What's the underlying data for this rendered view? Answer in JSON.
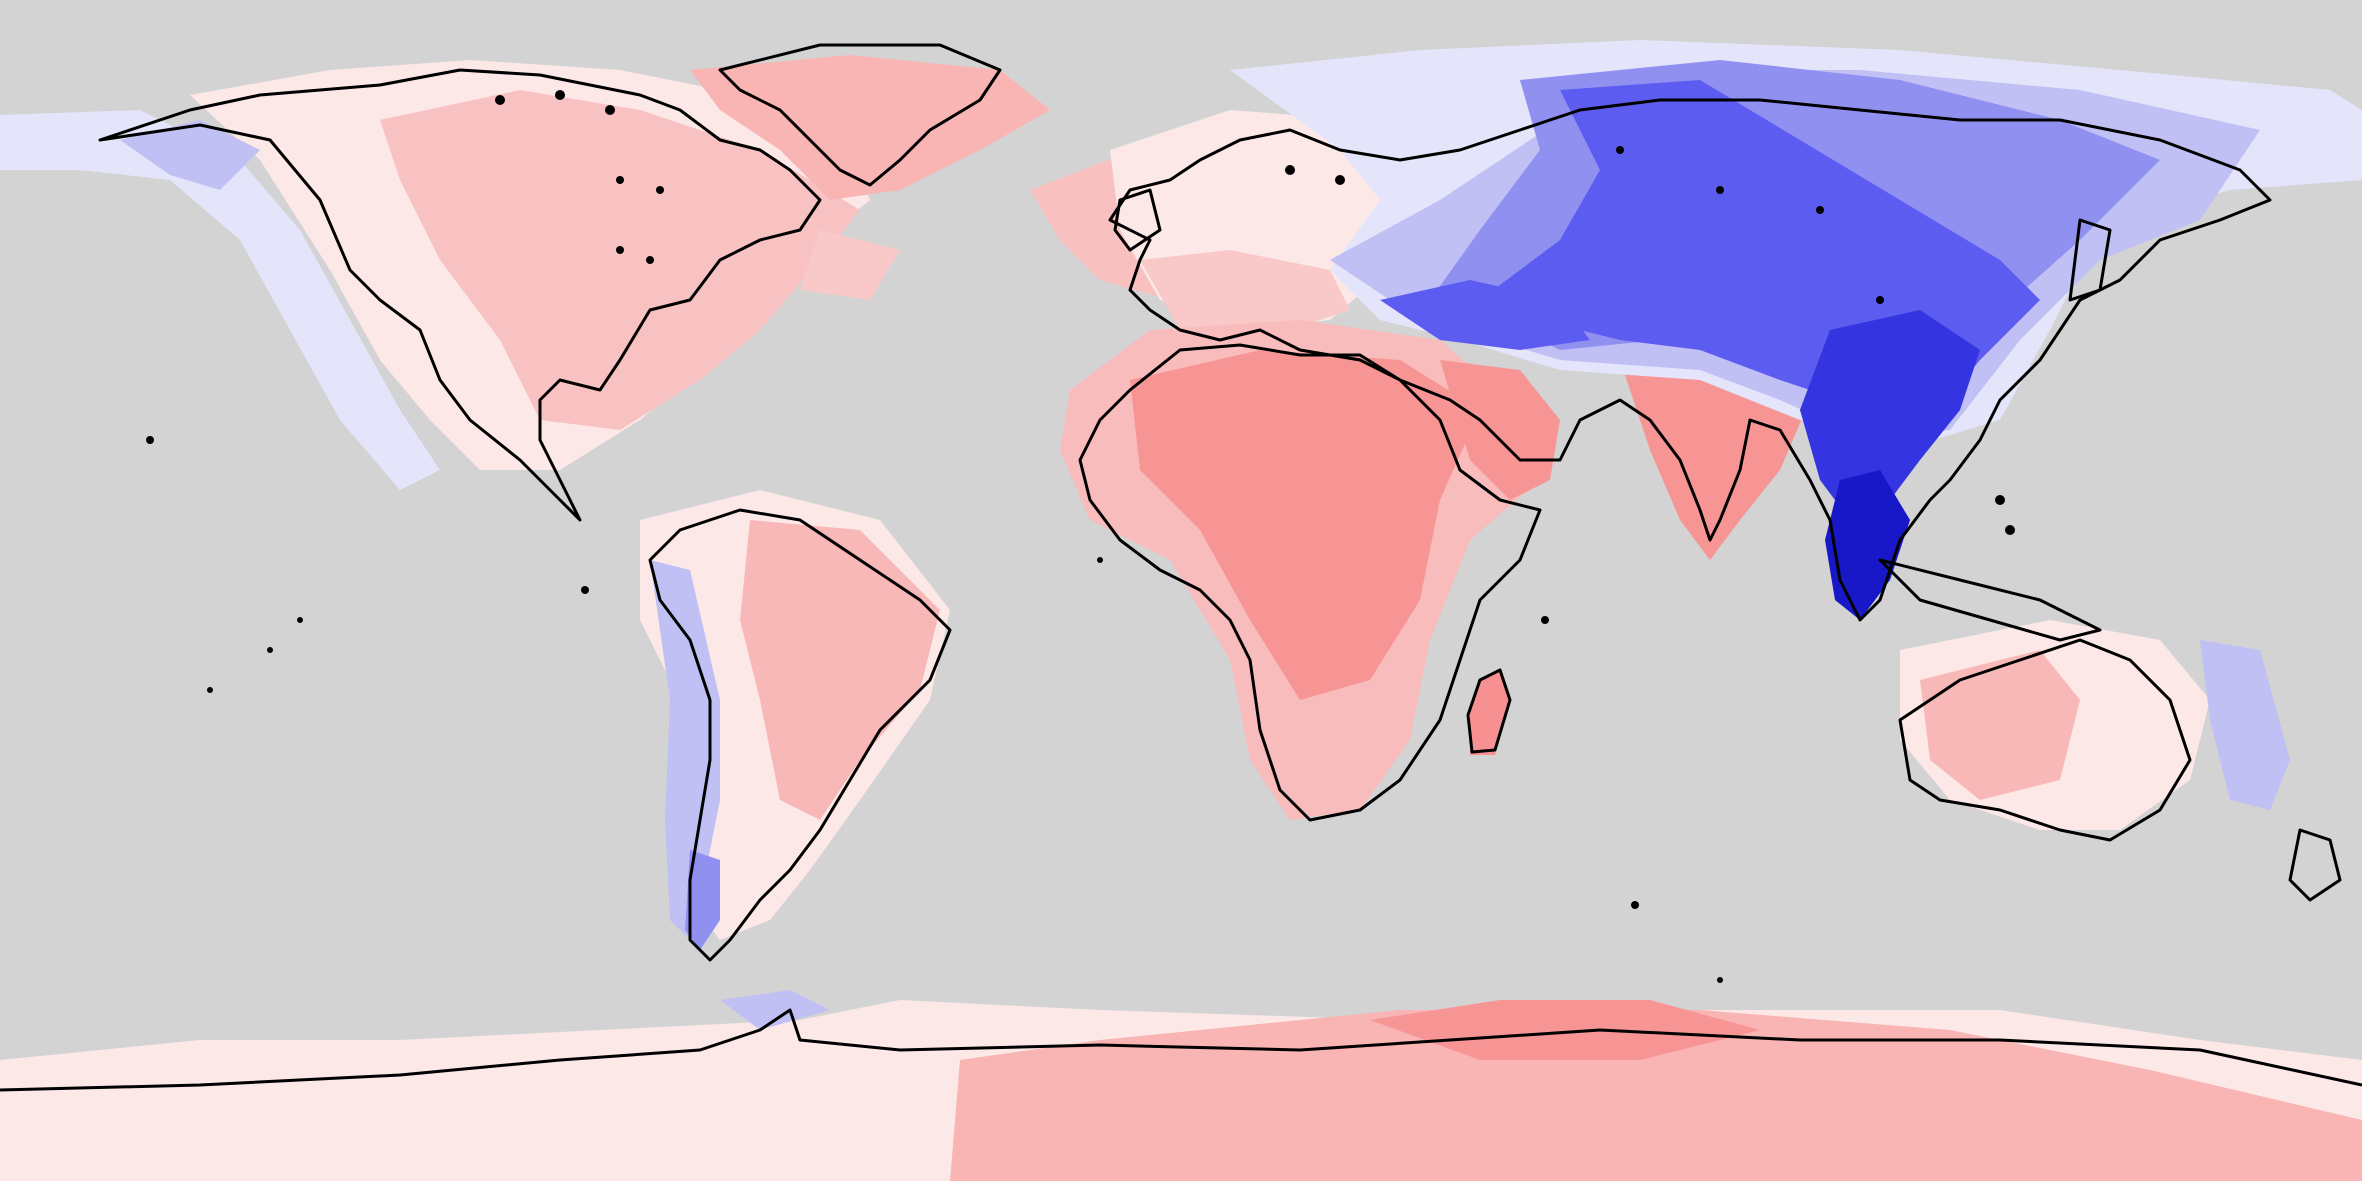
{
  "map": {
    "projection": "equirectangular",
    "ocean_color": "#d3d3d3",
    "coastline_color": "#000000",
    "palette": {
      "strong_red": "#f79090",
      "red": "#f9a8a8",
      "light_red": "#fcd4d4",
      "very_light_red": "#fde8e8",
      "very_light_blue": "#e4e4fb",
      "light_blue": "#c0c0f5",
      "blue": "#9090f0",
      "strong_blue": "#5c5cf0",
      "darker_blue": "#3434e0",
      "darkest_blue": "#1818c8"
    }
  }
}
